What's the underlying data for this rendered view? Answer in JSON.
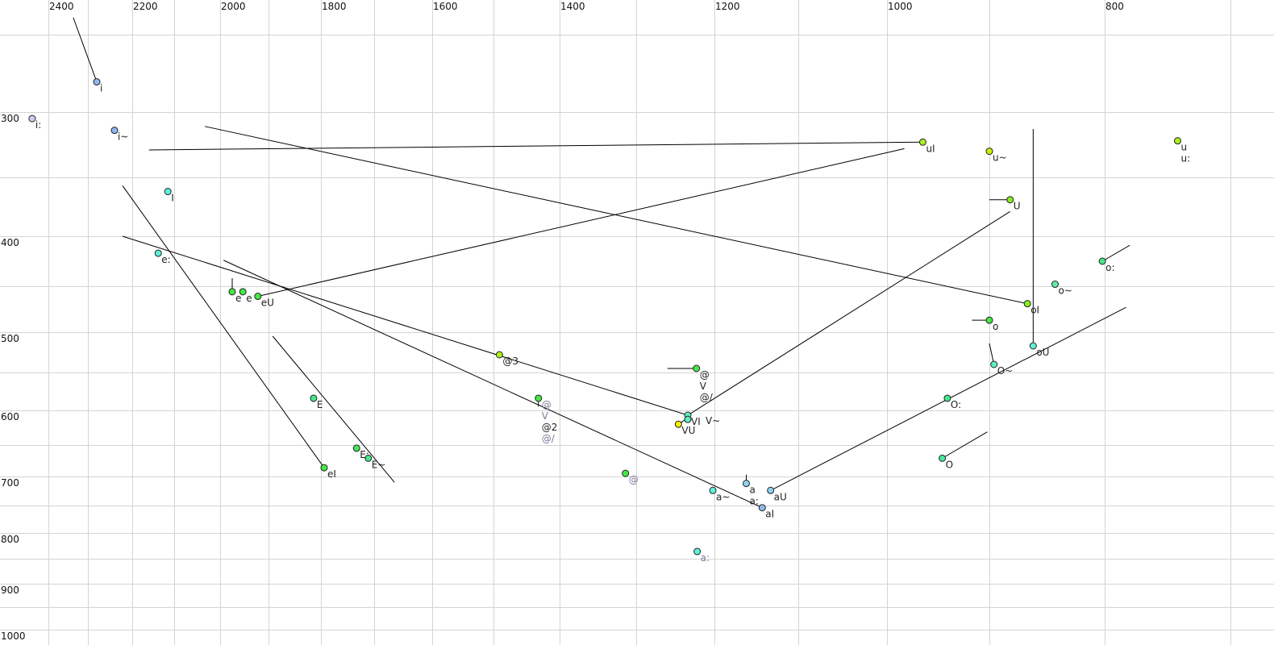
{
  "chart_data": {
    "type": "scatter",
    "title": "",
    "xlabel": "",
    "ylabel": "",
    "x_reversed": true,
    "x_scale": "nonlinear (auditory-like)",
    "y_scale": "nonlinear (auditory-like)",
    "xlim": [
      2450,
      690
    ],
    "ylim": [
      175,
      1020
    ],
    "grid": true,
    "x_tick_labels": [
      2400,
      2200,
      2000,
      1800,
      1600,
      1400,
      1200,
      1000,
      800
    ],
    "y_tick_labels": [
      300,
      400,
      500,
      600,
      700,
      800,
      900,
      1000
    ],
    "x_grid": [
      2400,
      2300,
      2200,
      2100,
      2000,
      1900,
      1800,
      1700,
      1600,
      1500,
      1400,
      1300,
      1200,
      1100,
      1000,
      900,
      800,
      700
    ],
    "y_grid": [
      200,
      300,
      350,
      400,
      450,
      500,
      550,
      600,
      650,
      700,
      750,
      800,
      850,
      900,
      950,
      1000
    ],
    "points": [
      {
        "labels": [
          "i"
        ],
        "f2": 2280,
        "f1": 261,
        "color": "#8fb8f0",
        "label_color": "#222222"
      },
      {
        "labels": [
          "i:"
        ],
        "f2": 2441,
        "f1": 305,
        "color": "#d4ccf2",
        "label_color": "#222222"
      },
      {
        "labels": [
          "i~"
        ],
        "f2": 2240,
        "f1": 314,
        "color": "#8fb8f0",
        "label_color": "#222222"
      },
      {
        "labels": [
          "I"
        ],
        "f2": 2115,
        "f1": 362,
        "color": "#5ef0d8",
        "label_color": "#222222"
      },
      {
        "labels": [
          "e:"
        ],
        "f2": 2138,
        "f1": 417,
        "color": "#5ef0d8",
        "label_color": "#222222"
      },
      {
        "labels": [
          "e"
        ],
        "f2": 1975,
        "f1": 456,
        "color": "#44e844",
        "label_color": "#222222"
      },
      {
        "labels": [
          "e"
        ],
        "f2": 1953,
        "f1": 456,
        "color": "#44e844",
        "label_color": "#222222"
      },
      {
        "labels": [
          "eU"
        ],
        "f2": 1922,
        "f1": 461,
        "color": "#44e844",
        "label_color": "#222222"
      },
      {
        "labels": [
          "@3"
        ],
        "f2": 1491,
        "f1": 528,
        "color": "#aaee22",
        "label_color": "#222222"
      },
      {
        "labels": [
          "@",
          "V",
          "@/"
        ],
        "f2": 1223,
        "f1": 545,
        "color": "#44e844",
        "label_color": "#222222"
      },
      {
        "labels": [
          "@",
          "V",
          "@2",
          "@/"
        ],
        "f2": 1432,
        "f1": 584,
        "color": "#44e844",
        "label_color": "#7a7a99",
        "label_colors": [
          "#7a7a99",
          "#7a7a99",
          "#222222",
          "#7a7a99"
        ]
      },
      {
        "labels": [
          "VI"
        ],
        "f2": 1234,
        "f1": 607,
        "color": "#5ef0c0",
        "label_color": "#222222"
      },
      {
        "labels": [
          "V~"
        ],
        "f2": 1234,
        "f1": 613,
        "color": "#5ef0c0",
        "label_color": "#222222"
      },
      {
        "labels": [
          "VU"
        ],
        "f2": 1246,
        "f1": 620,
        "color": "#f0f000",
        "label_color": "#222222"
      },
      {
        "labels": [
          "@"
        ],
        "f2": 1314,
        "f1": 695,
        "color": "#44e844",
        "label_color": "#7a7a99"
      },
      {
        "labels": [
          "a~"
        ],
        "f2": 1202,
        "f1": 724,
        "color": "#5ef0d8",
        "label_color": "#222222"
      },
      {
        "labels": [
          "a",
          "a:"
        ],
        "f2": 1162,
        "f1": 712,
        "color": "#8fd0f0",
        "label_color": "#222222"
      },
      {
        "labels": [
          "aU"
        ],
        "f2": 1133,
        "f1": 724,
        "color": "#8fd0f0",
        "label_color": "#222222"
      },
      {
        "labels": [
          "aI"
        ],
        "f2": 1143,
        "f1": 754,
        "color": "#8fb8f0",
        "label_color": "#222222"
      },
      {
        "labels": [
          "a:"
        ],
        "f2": 1222,
        "f1": 836,
        "color": "#5ef0d8",
        "label_color": "#7a7a99"
      },
      {
        "labels": [
          "E"
        ],
        "f2": 1814,
        "f1": 584,
        "color": "#44e888",
        "label_color": "#222222"
      },
      {
        "labels": [
          "E:"
        ],
        "f2": 1733,
        "f1": 655,
        "color": "#44e860",
        "label_color": "#222222"
      },
      {
        "labels": [
          "E~"
        ],
        "f2": 1711,
        "f1": 671,
        "color": "#44e888",
        "label_color": "#222222"
      },
      {
        "labels": [
          "eI"
        ],
        "f2": 1794,
        "f1": 686,
        "color": "#44e844",
        "label_color": "#222222"
      },
      {
        "labels": [
          "uI"
        ],
        "f2": 965,
        "f1": 323,
        "color": "#aaee22",
        "label_color": "#222222"
      },
      {
        "labels": [
          "u~"
        ],
        "f2": 900,
        "f1": 330,
        "color": "#ccee00",
        "label_color": "#222222"
      },
      {
        "labels": [
          "U"
        ],
        "f2": 882,
        "f1": 369,
        "color": "#88ee22",
        "label_color": "#222222"
      },
      {
        "labels": [
          "u",
          "u:"
        ],
        "f2": 742,
        "f1": 322,
        "color": "#aaee22",
        "label_color": "#222222"
      },
      {
        "labels": [
          "o:"
        ],
        "f2": 802,
        "f1": 425,
        "color": "#44e888",
        "label_color": "#222222"
      },
      {
        "labels": [
          "o~"
        ],
        "f2": 843,
        "f1": 448,
        "color": "#5ef0a8",
        "label_color": "#222222"
      },
      {
        "labels": [
          "oI"
        ],
        "f2": 867,
        "f1": 469,
        "color": "#88ee22",
        "label_color": "#222222"
      },
      {
        "labels": [
          "o"
        ],
        "f2": 900,
        "f1": 487,
        "color": "#44e844",
        "label_color": "#222222"
      },
      {
        "labels": [
          "oU"
        ],
        "f2": 862,
        "f1": 517,
        "color": "#5ef0d8",
        "label_color": "#222222"
      },
      {
        "labels": [
          "O~"
        ],
        "f2": 896,
        "f1": 540,
        "color": "#5ef0c0",
        "label_color": "#222222"
      },
      {
        "labels": [
          "O:"
        ],
        "f2": 941,
        "f1": 584,
        "color": "#44e888",
        "label_color": "#222222"
      },
      {
        "labels": [
          "O"
        ],
        "f2": 946,
        "f1": 671,
        "color": "#44e8a0",
        "label_color": "#222222"
      }
    ],
    "trajectories": [
      {
        "from": [
          2337,
          178
        ],
        "to": [
          2280,
          261
        ]
      },
      {
        "from": [
          2160,
          329
        ],
        "to": [
          965,
          323
        ]
      },
      {
        "from": [
          2033,
          311
        ],
        "to": [
          867,
          469
        ]
      },
      {
        "from": [
          1922,
          461
        ],
        "to": [
          983,
          328
        ]
      },
      {
        "from": [
          2222,
          357
        ],
        "to": [
          1794,
          686
        ]
      },
      {
        "from": [
          2222,
          400
        ],
        "to": [
          1234,
          607
        ]
      },
      {
        "from": [
          1993,
          424
        ],
        "to": [
          1143,
          754
        ]
      },
      {
        "from": [
          1892,
          505
        ],
        "to": [
          1665,
          710
        ]
      },
      {
        "from": [
          1975,
          442
        ],
        "to": [
          1975,
          456
        ]
      },
      {
        "from": [
          1260,
          545
        ],
        "to": [
          1223,
          545
        ]
      },
      {
        "from": [
          1234,
          607
        ],
        "to": [
          882,
          379
        ]
      },
      {
        "from": [
          862,
          313
        ],
        "to": [
          862,
          517
        ]
      },
      {
        "from": [
          1133,
          724
        ],
        "to": [
          783,
          473
        ]
      },
      {
        "from": [
          900,
          369
        ],
        "to": [
          882,
          369
        ]
      },
      {
        "from": [
          917,
          487
        ],
        "to": [
          900,
          487
        ]
      },
      {
        "from": [
          900,
          514
        ],
        "to": [
          896,
          540
        ]
      },
      {
        "from": [
          802,
          425
        ],
        "to": [
          780,
          409
        ]
      },
      {
        "from": [
          946,
          671
        ],
        "to": [
          902,
          631
        ]
      },
      {
        "from": [
          1162,
          697
        ],
        "to": [
          1162,
          712
        ]
      },
      {
        "from": [
          1432,
          584
        ],
        "to": [
          1432,
          595
        ]
      },
      {
        "from": [
          1246,
          620
        ],
        "to": [
          1234,
          611
        ]
      }
    ]
  }
}
